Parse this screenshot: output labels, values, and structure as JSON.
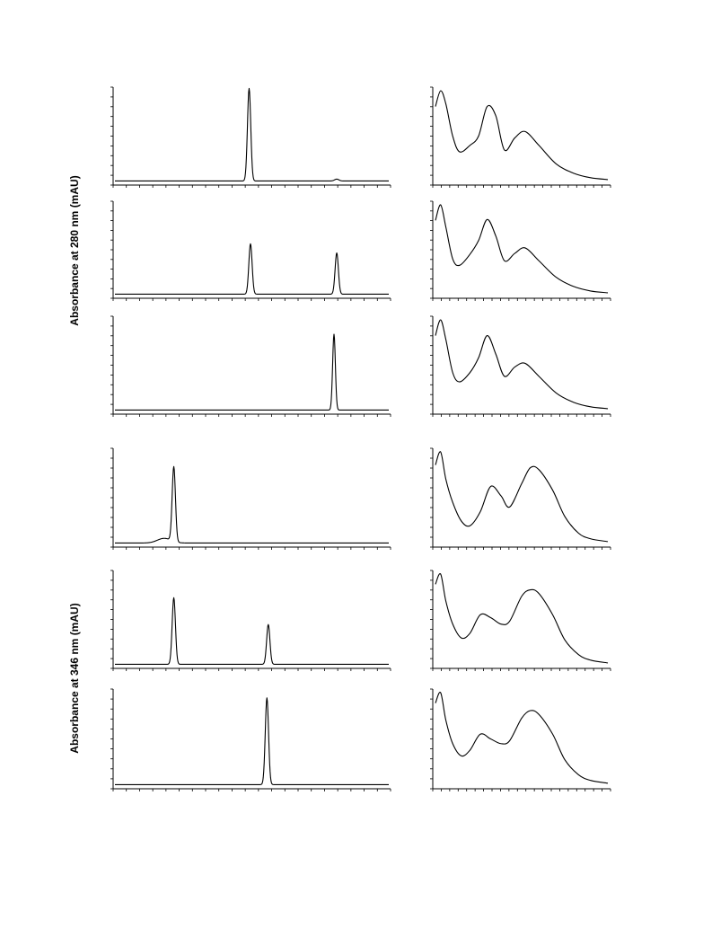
{
  "figure": {
    "group_labels": [
      "Absorbance at 280 nm (mAU)",
      "Absorbance at 346 nm (mAU)"
    ]
  },
  "chart_data": [
    {
      "type": "line",
      "kind": "chromatogram",
      "group": 0,
      "row": 0,
      "title": "",
      "xlabel": "",
      "ylabel": "",
      "xlim": [
        0,
        1
      ],
      "ylim": [
        0,
        1
      ],
      "baseline": 0.015,
      "peaks": [
        {
          "x": 0.49,
          "height": 1.0,
          "width": 0.006
        },
        {
          "x": 0.81,
          "height": 0.02,
          "width": 0.008
        }
      ]
    },
    {
      "type": "line",
      "kind": "spectrum",
      "group": 0,
      "row": 0,
      "title": "",
      "xlabel": "",
      "ylabel": "",
      "xlim": [
        0,
        1
      ],
      "ylim": [
        0,
        1
      ],
      "x": [
        0.0,
        0.03,
        0.06,
        0.1,
        0.14,
        0.2,
        0.25,
        0.3,
        0.35,
        0.4,
        0.46,
        0.52,
        0.6,
        0.7,
        0.8,
        0.9,
        1.0
      ],
      "y": [
        0.82,
        0.99,
        0.85,
        0.5,
        0.33,
        0.4,
        0.5,
        0.82,
        0.72,
        0.35,
        0.48,
        0.55,
        0.4,
        0.2,
        0.1,
        0.05,
        0.03
      ]
    },
    {
      "type": "line",
      "kind": "chromatogram",
      "group": 0,
      "row": 1,
      "title": "",
      "xlabel": "",
      "ylabel": "",
      "xlim": [
        0,
        1
      ],
      "ylim": [
        0,
        1
      ],
      "baseline": 0.015,
      "peaks": [
        {
          "x": 0.495,
          "height": 0.55,
          "width": 0.006
        },
        {
          "x": 0.81,
          "height": 0.45,
          "width": 0.006
        }
      ]
    },
    {
      "type": "line",
      "kind": "spectrum",
      "group": 0,
      "row": 1,
      "title": "",
      "xlabel": "",
      "ylabel": "",
      "xlim": [
        0,
        1
      ],
      "ylim": [
        0,
        1
      ],
      "x": [
        0.0,
        0.03,
        0.06,
        0.1,
        0.14,
        0.2,
        0.25,
        0.3,
        0.35,
        0.4,
        0.46,
        0.52,
        0.6,
        0.7,
        0.8,
        0.9,
        1.0
      ],
      "y": [
        0.82,
        0.99,
        0.75,
        0.4,
        0.33,
        0.45,
        0.6,
        0.83,
        0.65,
        0.38,
        0.46,
        0.52,
        0.38,
        0.2,
        0.1,
        0.05,
        0.03
      ]
    },
    {
      "type": "line",
      "kind": "chromatogram",
      "group": 0,
      "row": 2,
      "title": "",
      "xlabel": "",
      "ylabel": "",
      "xlim": [
        0,
        1
      ],
      "ylim": [
        0,
        1
      ],
      "baseline": 0.015,
      "peaks": [
        {
          "x": 0.8,
          "height": 0.82,
          "width": 0.005
        }
      ]
    },
    {
      "type": "line",
      "kind": "spectrum",
      "group": 0,
      "row": 2,
      "title": "",
      "xlabel": "",
      "ylabel": "",
      "xlim": [
        0,
        1
      ],
      "ylim": [
        0,
        1
      ],
      "x": [
        0.0,
        0.03,
        0.06,
        0.1,
        0.14,
        0.2,
        0.25,
        0.3,
        0.35,
        0.4,
        0.46,
        0.52,
        0.6,
        0.7,
        0.8,
        0.9,
        1.0
      ],
      "y": [
        0.82,
        0.99,
        0.78,
        0.42,
        0.32,
        0.42,
        0.58,
        0.82,
        0.62,
        0.38,
        0.48,
        0.52,
        0.38,
        0.2,
        0.1,
        0.05,
        0.03
      ]
    },
    {
      "type": "line",
      "kind": "chromatogram",
      "group": 1,
      "row": 0,
      "title": "",
      "xlabel": "",
      "ylabel": "",
      "xlim": [
        0,
        1
      ],
      "ylim": [
        0,
        1
      ],
      "baseline": 0.015,
      "peaks": [
        {
          "x": 0.215,
          "height": 0.8,
          "width": 0.006
        },
        {
          "x": 0.18,
          "height": 0.05,
          "width": 0.025
        }
      ]
    },
    {
      "type": "line",
      "kind": "spectrum",
      "group": 1,
      "row": 0,
      "title": "",
      "xlabel": "",
      "ylabel": "",
      "xlim": [
        0,
        1
      ],
      "ylim": [
        0,
        1
      ],
      "x": [
        0.0,
        0.03,
        0.06,
        0.1,
        0.15,
        0.2,
        0.26,
        0.32,
        0.38,
        0.43,
        0.5,
        0.55,
        0.6,
        0.68,
        0.75,
        0.83,
        0.9,
        1.0
      ],
      "y": [
        0.85,
        0.99,
        0.7,
        0.45,
        0.25,
        0.2,
        0.35,
        0.62,
        0.52,
        0.4,
        0.65,
        0.82,
        0.8,
        0.58,
        0.3,
        0.12,
        0.06,
        0.03
      ]
    },
    {
      "type": "line",
      "kind": "chromatogram",
      "group": 1,
      "row": 1,
      "title": "",
      "xlabel": "",
      "ylabel": "",
      "xlim": [
        0,
        1
      ],
      "ylim": [
        0,
        1
      ],
      "baseline": 0.015,
      "peaks": [
        {
          "x": 0.215,
          "height": 0.72,
          "width": 0.006
        },
        {
          "x": 0.56,
          "height": 0.43,
          "width": 0.006
        }
      ]
    },
    {
      "type": "line",
      "kind": "spectrum",
      "group": 1,
      "row": 1,
      "title": "",
      "xlabel": "",
      "ylabel": "",
      "xlim": [
        0,
        1
      ],
      "ylim": [
        0,
        1
      ],
      "x": [
        0.0,
        0.03,
        0.06,
        0.1,
        0.15,
        0.2,
        0.26,
        0.32,
        0.38,
        0.43,
        0.5,
        0.55,
        0.6,
        0.68,
        0.75,
        0.83,
        0.9,
        1.0
      ],
      "y": [
        0.88,
        0.99,
        0.7,
        0.45,
        0.3,
        0.35,
        0.55,
        0.52,
        0.45,
        0.48,
        0.75,
        0.82,
        0.78,
        0.55,
        0.28,
        0.12,
        0.06,
        0.03
      ]
    },
    {
      "type": "line",
      "kind": "chromatogram",
      "group": 1,
      "row": 2,
      "title": "",
      "xlabel": "",
      "ylabel": "",
      "xlim": [
        0,
        1
      ],
      "ylim": [
        0,
        1
      ],
      "baseline": 0.015,
      "peaks": [
        {
          "x": 0.555,
          "height": 0.92,
          "width": 0.006
        }
      ]
    },
    {
      "type": "line",
      "kind": "spectrum",
      "group": 1,
      "row": 2,
      "title": "",
      "xlabel": "",
      "ylabel": "",
      "xlim": [
        0,
        1
      ],
      "ylim": [
        0,
        1
      ],
      "x": [
        0.0,
        0.03,
        0.06,
        0.1,
        0.15,
        0.2,
        0.26,
        0.32,
        0.38,
        0.43,
        0.5,
        0.55,
        0.6,
        0.68,
        0.75,
        0.83,
        0.9,
        1.0
      ],
      "y": [
        0.88,
        0.99,
        0.7,
        0.45,
        0.32,
        0.38,
        0.55,
        0.5,
        0.45,
        0.48,
        0.72,
        0.8,
        0.76,
        0.55,
        0.28,
        0.12,
        0.06,
        0.03
      ]
    }
  ]
}
